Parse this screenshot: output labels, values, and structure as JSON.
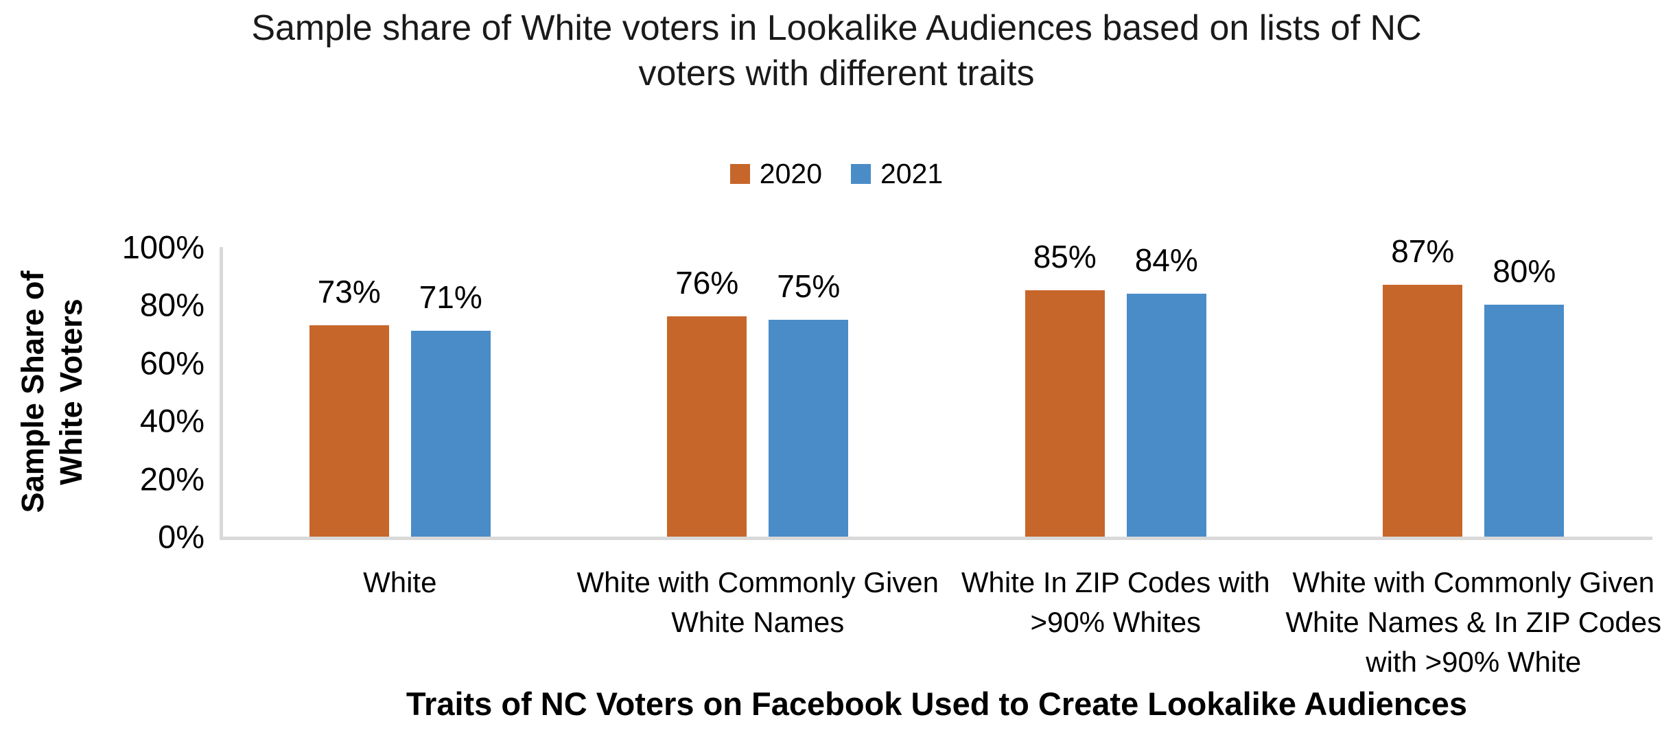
{
  "chart_data": {
    "type": "bar",
    "title": "Sample share of White voters in Lookalike Audiences based on lists of NC voters with different traits",
    "title_lines": [
      "Sample share of White voters in Lookalike Audiences based on lists of NC",
      "voters with different traits"
    ],
    "xlabel": "Traits of NC Voters on Facebook Used to Create Lookalike Audiences",
    "ylabel": "Sample Share of White Voters",
    "ylabel_lines": [
      "Sample Share of",
      "White Voters"
    ],
    "categories": [
      "White",
      "White with Commonly Given White Names",
      "White In ZIP Codes with >90% Whites",
      "White with Commonly Given White Names & In ZIP Codes with >90% White"
    ],
    "category_lines": [
      [
        "White"
      ],
      [
        "White with Commonly Given",
        "White Names"
      ],
      [
        "White In ZIP Codes with",
        ">90% Whites"
      ],
      [
        "White with Commonly Given",
        "White Names & In ZIP Codes",
        "with >90% White"
      ]
    ],
    "series": [
      {
        "name": "2020",
        "color": "#C7662A",
        "values": [
          73,
          76,
          85,
          87
        ]
      },
      {
        "name": "2021",
        "color": "#4A8CC8",
        "values": [
          71,
          75,
          84,
          80
        ]
      }
    ],
    "data_labels": [
      [
        "73%",
        "76%",
        "85%",
        "87%"
      ],
      [
        "71%",
        "75%",
        "84%",
        "80%"
      ]
    ],
    "value_suffix": "%",
    "ylim": [
      0,
      100
    ],
    "y_ticks": [
      "0%",
      "20%",
      "40%",
      "60%",
      "80%",
      "100%"
    ],
    "grid": false,
    "legend_position": "top",
    "axis_color": "#D9D9D9"
  }
}
